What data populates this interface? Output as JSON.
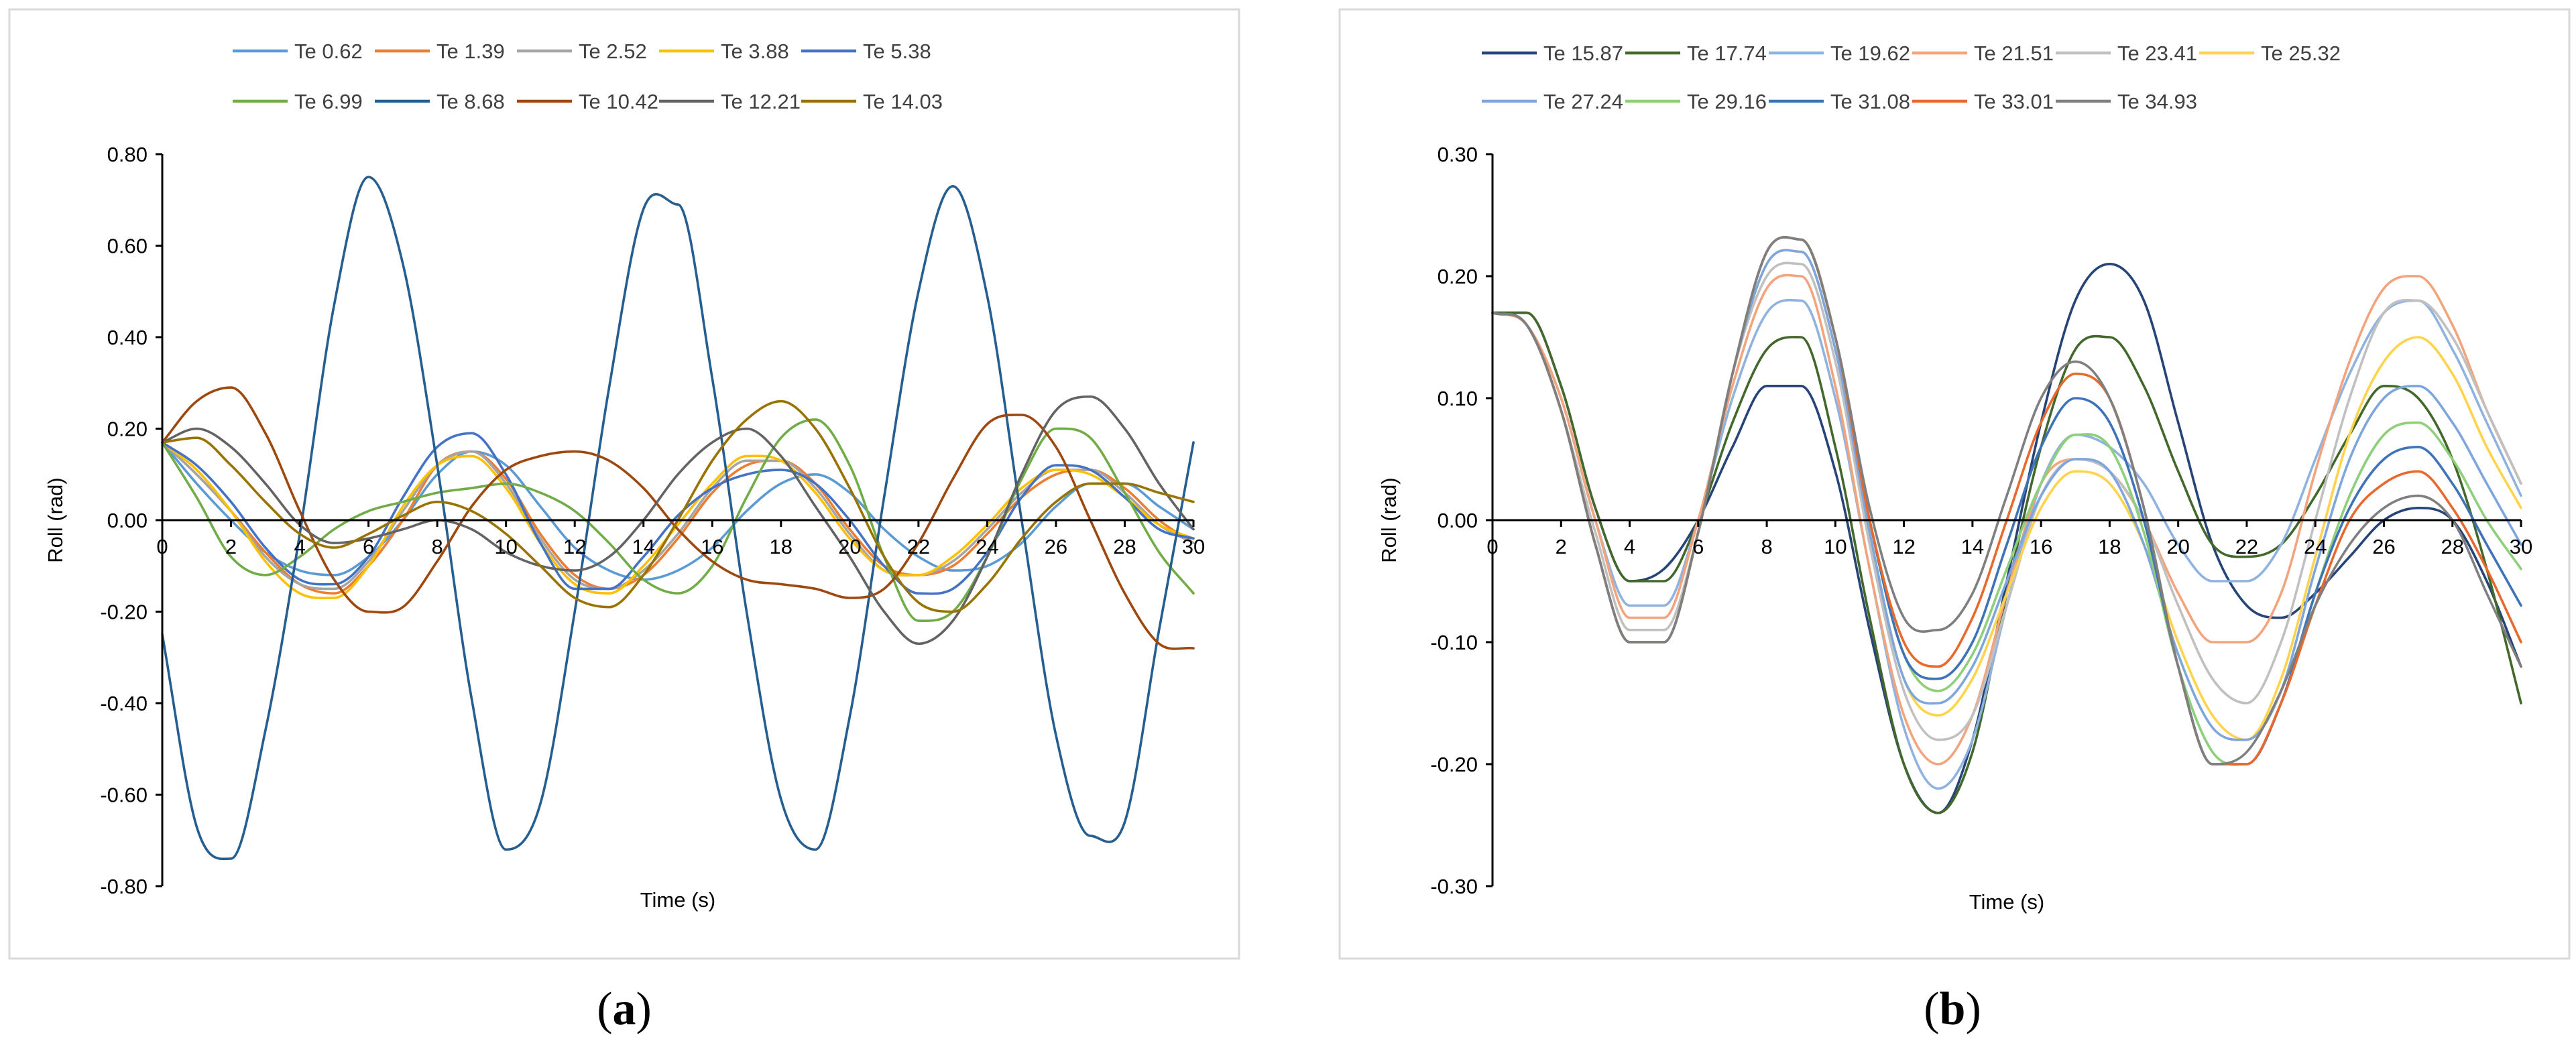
{
  "panels": [
    {
      "letter": "a",
      "label_open": "(",
      "label_close": ")"
    },
    {
      "letter": "b",
      "label_open": "(",
      "label_close": ")"
    }
  ],
  "chart_data": [
    {
      "type": "line",
      "title": "",
      "xlabel": "Time (s)",
      "ylabel": "Roll (rad)",
      "xlim": [
        0,
        30
      ],
      "ylim": [
        -0.8,
        0.8
      ],
      "x_ticks": [
        0,
        2,
        4,
        6,
        8,
        10,
        12,
        14,
        16,
        18,
        20,
        22,
        24,
        26,
        28,
        30
      ],
      "x_tick_labels": [
        "0",
        "2",
        "4",
        "6",
        "8",
        "10",
        "12",
        "14",
        "16",
        "18",
        "20",
        "22",
        "24",
        "26",
        "28",
        "30"
      ],
      "y_ticks": [
        -0.8,
        -0.6,
        -0.4,
        -0.2,
        0.0,
        0.2,
        0.4,
        0.6,
        0.8
      ],
      "y_tick_labels": [
        "-0.80",
        "-0.60",
        "-0.40",
        "-0.20",
        "0.00",
        "0.20",
        "0.40",
        "0.60",
        "0.80"
      ],
      "grid": false,
      "legend_position": "top",
      "x": [
        0,
        1,
        2,
        3,
        4,
        5,
        6,
        7,
        8,
        9,
        10,
        11,
        12,
        13,
        14,
        15,
        16,
        17,
        18,
        19,
        20,
        21,
        22,
        23,
        24,
        25,
        26,
        27,
        28,
        29,
        30
      ],
      "series": [
        {
          "name": "Te 0.62",
          "color": "#5b9bd5",
          "values": [
            0.17,
            0.08,
            0.0,
            -0.07,
            -0.11,
            -0.12,
            -0.08,
            0.0,
            0.1,
            0.15,
            0.12,
            0.03,
            -0.06,
            -0.11,
            -0.13,
            -0.11,
            -0.06,
            0.02,
            0.08,
            0.1,
            0.06,
            -0.02,
            -0.08,
            -0.11,
            -0.1,
            -0.05,
            0.03,
            0.08,
            0.08,
            0.03,
            -0.02
          ]
        },
        {
          "name": "Te 1.39",
          "color": "#ed7d31",
          "values": [
            0.17,
            0.1,
            0.02,
            -0.07,
            -0.14,
            -0.16,
            -0.1,
            0.0,
            0.12,
            0.15,
            0.09,
            -0.03,
            -0.12,
            -0.15,
            -0.12,
            -0.04,
            0.06,
            0.12,
            0.13,
            0.08,
            -0.02,
            -0.1,
            -0.12,
            -0.1,
            -0.03,
            0.05,
            0.1,
            0.11,
            0.07,
            0.0,
            -0.05
          ]
        },
        {
          "name": "Te 2.52",
          "color": "#a5a5a5",
          "values": [
            0.17,
            0.1,
            0.02,
            -0.08,
            -0.14,
            -0.15,
            -0.09,
            0.02,
            0.12,
            0.15,
            0.08,
            -0.04,
            -0.13,
            -0.15,
            -0.11,
            -0.03,
            0.07,
            0.13,
            0.13,
            0.07,
            -0.03,
            -0.11,
            -0.12,
            -0.09,
            -0.02,
            0.06,
            0.11,
            0.11,
            0.06,
            -0.01,
            -0.05
          ]
        },
        {
          "name": "Te 3.88",
          "color": "#ffc000",
          "values": [
            0.17,
            0.11,
            0.02,
            -0.09,
            -0.16,
            -0.17,
            -0.1,
            0.03,
            0.12,
            0.14,
            0.07,
            -0.05,
            -0.14,
            -0.16,
            -0.1,
            -0.01,
            0.08,
            0.14,
            0.13,
            0.06,
            -0.04,
            -0.11,
            -0.12,
            -0.08,
            -0.01,
            0.07,
            0.11,
            0.1,
            0.05,
            -0.01,
            -0.04
          ]
        },
        {
          "name": "Te 5.38",
          "color": "#4472c4",
          "values": [
            0.17,
            0.12,
            0.04,
            -0.06,
            -0.13,
            -0.14,
            -0.08,
            0.05,
            0.16,
            0.19,
            0.1,
            -0.05,
            -0.15,
            -0.15,
            -0.08,
            0.01,
            0.07,
            0.1,
            0.11,
            0.08,
            0.0,
            -0.1,
            -0.16,
            -0.15,
            -0.07,
            0.05,
            0.12,
            0.11,
            0.05,
            -0.02,
            -0.04
          ]
        },
        {
          "name": "Te 6.99",
          "color": "#70ad47",
          "values": [
            0.17,
            0.05,
            -0.08,
            -0.12,
            -0.08,
            -0.02,
            0.02,
            0.04,
            0.06,
            0.07,
            0.08,
            0.06,
            0.02,
            -0.05,
            -0.13,
            -0.16,
            -0.1,
            0.05,
            0.18,
            0.22,
            0.12,
            -0.08,
            -0.22,
            -0.2,
            -0.08,
            0.09,
            0.2,
            0.18,
            0.06,
            -0.07,
            -0.16
          ]
        },
        {
          "name": "Te 8.68",
          "color": "#255e91",
          "values": [
            -0.25,
            -0.67,
            -0.74,
            -0.46,
            -0.03,
            0.47,
            0.75,
            0.56,
            0.12,
            -0.39,
            -0.72,
            -0.62,
            -0.2,
            0.29,
            0.68,
            0.69,
            0.31,
            -0.2,
            -0.61,
            -0.72,
            -0.43,
            0.05,
            0.5,
            0.73,
            0.49,
            0.0,
            -0.47,
            -0.69,
            -0.66,
            -0.24,
            0.17
          ]
        },
        {
          "name": "Te 10.42",
          "color": "#9e480e",
          "values": [
            0.17,
            0.26,
            0.29,
            0.19,
            0.02,
            -0.13,
            -0.2,
            -0.19,
            -0.09,
            0.03,
            0.11,
            0.14,
            0.15,
            0.13,
            0.07,
            -0.02,
            -0.09,
            -0.13,
            -0.14,
            -0.15,
            -0.17,
            -0.15,
            -0.05,
            0.09,
            0.21,
            0.23,
            0.16,
            0.0,
            -0.16,
            -0.27,
            -0.28
          ]
        },
        {
          "name": "Te 12.21",
          "color": "#636363",
          "values": [
            0.17,
            0.2,
            0.16,
            0.08,
            -0.01,
            -0.05,
            -0.04,
            -0.02,
            0.0,
            -0.02,
            -0.07,
            -0.1,
            -0.11,
            -0.08,
            0.0,
            0.1,
            0.17,
            0.2,
            0.14,
            0.03,
            -0.08,
            -0.2,
            -0.27,
            -0.22,
            -0.08,
            0.1,
            0.24,
            0.27,
            0.2,
            0.08,
            -0.02
          ]
        },
        {
          "name": "Te 14.03",
          "color": "#997300",
          "values": [
            0.17,
            0.18,
            0.12,
            0.04,
            -0.03,
            -0.06,
            -0.03,
            0.01,
            0.04,
            0.02,
            -0.03,
            -0.1,
            -0.17,
            -0.19,
            -0.12,
            0.0,
            0.13,
            0.22,
            0.26,
            0.2,
            0.07,
            -0.08,
            -0.18,
            -0.2,
            -0.14,
            -0.04,
            0.04,
            0.08,
            0.08,
            0.06,
            0.04
          ]
        }
      ]
    },
    {
      "type": "line",
      "title": "",
      "xlabel": "Time (s)",
      "ylabel": "Roll (rad)",
      "xlim": [
        0,
        30
      ],
      "ylim": [
        -0.3,
        0.3
      ],
      "x_ticks": [
        0,
        2,
        4,
        6,
        8,
        10,
        12,
        14,
        16,
        18,
        20,
        22,
        24,
        26,
        28,
        30
      ],
      "x_tick_labels": [
        "0",
        "2",
        "4",
        "6",
        "8",
        "10",
        "12",
        "14",
        "16",
        "18",
        "20",
        "22",
        "24",
        "26",
        "28",
        "30"
      ],
      "y_ticks": [
        -0.3,
        -0.2,
        -0.1,
        0.0,
        0.1,
        0.2,
        0.3
      ],
      "y_tick_labels": [
        "-0.30",
        "-0.20",
        "-0.10",
        "0.00",
        "0.10",
        "0.20",
        "0.30"
      ],
      "grid": false,
      "legend_position": "top",
      "x": [
        0,
        1,
        2,
        3,
        4,
        5,
        6,
        7,
        8,
        9,
        10,
        11,
        12,
        13,
        14,
        15,
        16,
        17,
        18,
        19,
        20,
        21,
        22,
        23,
        24,
        25,
        26,
        27,
        28,
        29,
        30
      ],
      "series": [
        {
          "name": "Te 15.87",
          "color": "#264478",
          "values": [
            0.17,
            0.17,
            0.11,
            0.01,
            -0.05,
            -0.04,
            0.0,
            0.06,
            0.11,
            0.11,
            0.04,
            -0.09,
            -0.2,
            -0.24,
            -0.18,
            -0.05,
            0.08,
            0.18,
            0.21,
            0.18,
            0.08,
            -0.02,
            -0.07,
            -0.08,
            -0.06,
            -0.03,
            0.0,
            0.01,
            0.0,
            -0.05,
            -0.12
          ]
        },
        {
          "name": "Te 17.74",
          "color": "#43682b",
          "values": [
            0.17,
            0.17,
            0.11,
            0.01,
            -0.05,
            -0.05,
            0.0,
            0.08,
            0.14,
            0.15,
            0.06,
            -0.08,
            -0.2,
            -0.24,
            -0.19,
            -0.06,
            0.06,
            0.14,
            0.15,
            0.11,
            0.04,
            -0.02,
            -0.03,
            -0.02,
            0.02,
            0.07,
            0.11,
            0.1,
            0.05,
            -0.04,
            -0.15
          ]
        },
        {
          "name": "Te 19.62",
          "color": "#8fb3e0",
          "values": [
            0.17,
            0.16,
            0.1,
            0.0,
            -0.07,
            -0.07,
            0.0,
            0.1,
            0.17,
            0.18,
            0.1,
            -0.04,
            -0.17,
            -0.22,
            -0.18,
            -0.07,
            0.03,
            0.07,
            0.06,
            0.03,
            -0.02,
            -0.05,
            -0.05,
            -0.02,
            0.05,
            0.12,
            0.17,
            0.18,
            0.14,
            0.08,
            0.02
          ]
        },
        {
          "name": "Te 21.51",
          "color": "#f4a47c",
          "values": [
            0.17,
            0.16,
            0.1,
            0.0,
            -0.08,
            -0.08,
            0.0,
            0.11,
            0.19,
            0.2,
            0.11,
            -0.04,
            -0.16,
            -0.2,
            -0.16,
            -0.06,
            0.03,
            0.05,
            0.04,
            0.0,
            -0.06,
            -0.1,
            -0.1,
            -0.06,
            0.04,
            0.13,
            0.19,
            0.2,
            0.16,
            0.09,
            0.03
          ]
        },
        {
          "name": "Te 23.41",
          "color": "#c0c0c0",
          "values": [
            0.17,
            0.16,
            0.09,
            -0.01,
            -0.09,
            -0.09,
            -0.01,
            0.12,
            0.2,
            0.21,
            0.13,
            -0.02,
            -0.14,
            -0.18,
            -0.16,
            -0.07,
            0.02,
            0.05,
            0.04,
            0.0,
            -0.07,
            -0.13,
            -0.15,
            -0.1,
            0.0,
            0.1,
            0.17,
            0.18,
            0.15,
            0.09,
            0.03
          ]
        },
        {
          "name": "Te 25.32",
          "color": "#ffd34c",
          "values": [
            0.17,
            0.16,
            0.09,
            -0.02,
            -0.1,
            -0.1,
            -0.01,
            0.12,
            0.21,
            0.22,
            0.14,
            -0.01,
            -0.13,
            -0.16,
            -0.13,
            -0.06,
            0.01,
            0.04,
            0.03,
            -0.02,
            -0.1,
            -0.16,
            -0.18,
            -0.13,
            -0.03,
            0.07,
            0.13,
            0.15,
            0.12,
            0.06,
            0.01
          ]
        },
        {
          "name": "Te 27.24",
          "color": "#7ea6de",
          "values": [
            0.17,
            0.16,
            0.09,
            -0.02,
            -0.1,
            -0.1,
            -0.01,
            0.12,
            0.21,
            0.22,
            0.14,
            -0.01,
            -0.13,
            -0.15,
            -0.12,
            -0.05,
            0.02,
            0.05,
            0.04,
            -0.02,
            -0.11,
            -0.17,
            -0.18,
            -0.14,
            -0.04,
            0.05,
            0.1,
            0.11,
            0.08,
            0.03,
            -0.02
          ]
        },
        {
          "name": "Te 29.16",
          "color": "#8ed07a",
          "values": [
            0.17,
            0.16,
            0.09,
            -0.02,
            -0.1,
            -0.1,
            -0.01,
            0.12,
            0.22,
            0.23,
            0.15,
            0.0,
            -0.11,
            -0.14,
            -0.11,
            -0.04,
            0.03,
            0.07,
            0.06,
            -0.01,
            -0.12,
            -0.19,
            -0.2,
            -0.15,
            -0.06,
            0.02,
            0.07,
            0.08,
            0.05,
            0.0,
            -0.04
          ]
        },
        {
          "name": "Te 31.08",
          "color": "#3e73b8",
          "values": [
            0.17,
            0.16,
            0.09,
            -0.02,
            -0.1,
            -0.1,
            -0.01,
            0.12,
            0.22,
            0.23,
            0.15,
            0.0,
            -0.11,
            -0.13,
            -0.1,
            -0.02,
            0.06,
            0.1,
            0.08,
            0.0,
            -0.12,
            -0.2,
            -0.2,
            -0.15,
            -0.06,
            0.01,
            0.05,
            0.06,
            0.03,
            -0.02,
            -0.07
          ]
        },
        {
          "name": "Te 33.01",
          "color": "#e8692d",
          "values": [
            0.17,
            0.16,
            0.09,
            -0.02,
            -0.1,
            -0.1,
            -0.01,
            0.12,
            0.22,
            0.23,
            0.15,
            0.0,
            -0.1,
            -0.12,
            -0.08,
            0.0,
            0.08,
            0.12,
            0.1,
            0.01,
            -0.12,
            -0.2,
            -0.2,
            -0.15,
            -0.07,
            0.0,
            0.03,
            0.04,
            0.01,
            -0.04,
            -0.1
          ]
        },
        {
          "name": "Te 34.93",
          "color": "#7f7f7f",
          "values": [
            0.17,
            0.16,
            0.09,
            -0.02,
            -0.1,
            -0.1,
            -0.01,
            0.12,
            0.22,
            0.23,
            0.15,
            0.01,
            -0.08,
            -0.09,
            -0.06,
            0.02,
            0.1,
            0.13,
            0.1,
            0.01,
            -0.12,
            -0.2,
            -0.19,
            -0.14,
            -0.07,
            -0.02,
            0.01,
            0.02,
            0.0,
            -0.06,
            -0.12
          ]
        }
      ]
    }
  ]
}
